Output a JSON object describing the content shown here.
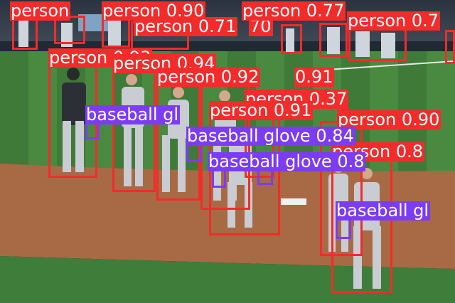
{
  "image": {
    "description": "Baseball players walking across an infield with object-detection bounding boxes overlaid",
    "colors": {
      "person": "#f22b2b",
      "baseball_glove": "#7b3cf2"
    }
  },
  "detections": [
    {
      "class": "person",
      "label": "person",
      "score": "",
      "color": "#f22b2b"
    },
    {
      "class": "person",
      "label": "person",
      "score": "0.90",
      "color": "#f22b2b"
    },
    {
      "class": "person",
      "label": "person",
      "score": "0.71",
      "color": "#f22b2b"
    },
    {
      "class": "person",
      "label": "70",
      "score": "",
      "color": "#f22b2b"
    },
    {
      "class": "person",
      "label": "person",
      "score": "0.77",
      "color": "#f22b2b"
    },
    {
      "class": "person",
      "label": "person",
      "score": "0.7",
      "color": "#f22b2b"
    },
    {
      "class": "person",
      "label": "person",
      "score": "0.93",
      "color": "#f22b2b"
    },
    {
      "class": "person",
      "label": "person",
      "score": "0.94",
      "color": "#f22b2b"
    },
    {
      "class": "person",
      "label": "person",
      "score": "0.92",
      "color": "#f22b2b"
    },
    {
      "class": "person",
      "label": "0.91",
      "score": "",
      "color": "#f22b2b"
    },
    {
      "class": "person",
      "label": "person",
      "score": "0.37",
      "color": "#f22b2b"
    },
    {
      "class": "person",
      "label": "person",
      "score": "0.91",
      "color": "#f22b2b"
    },
    {
      "class": "person",
      "label": "person",
      "score": "0.90",
      "color": "#f22b2b"
    },
    {
      "class": "person",
      "label": "person",
      "score": "0.8",
      "color": "#f22b2b"
    },
    {
      "class": "baseball glove",
      "label": "baseball gl",
      "score": "",
      "color": "#7b3cf2"
    },
    {
      "class": "baseball glove",
      "label": "baseball glove",
      "score": "0.84",
      "color": "#7b3cf2"
    },
    {
      "class": "baseball glove",
      "label": "baseball glove",
      "score": "0.8",
      "color": "#7b3cf2"
    },
    {
      "class": "baseball glove",
      "label": "baseball gl",
      "score": "",
      "color": "#7b3cf2"
    }
  ]
}
